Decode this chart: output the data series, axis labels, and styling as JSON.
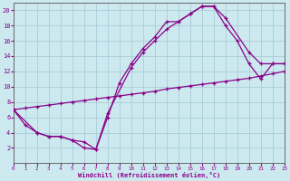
{
  "xlabel": "Windchill (Refroidissement éolien,°C)",
  "bg_color": "#cde9f0",
  "line_color": "#880088",
  "grid_color": "#aaccd8",
  "xlim": [
    0,
    23
  ],
  "ylim": [
    0,
    21
  ],
  "xticks": [
    0,
    1,
    2,
    3,
    4,
    5,
    6,
    7,
    8,
    9,
    10,
    11,
    12,
    13,
    14,
    15,
    16,
    17,
    18,
    19,
    20,
    21,
    22,
    23
  ],
  "yticks": [
    2,
    4,
    6,
    8,
    10,
    12,
    14,
    16,
    18,
    20
  ],
  "curve1_x": [
    0,
    1,
    2,
    3,
    4,
    5,
    6,
    7,
    8,
    9,
    10,
    11,
    12,
    13,
    14,
    15,
    16,
    17,
    18,
    20,
    21,
    22,
    23
  ],
  "curve1_y": [
    7,
    5,
    4,
    3.5,
    3.5,
    3,
    2,
    1.8,
    6,
    10.5,
    13,
    15,
    16.5,
    18.5,
    18.5,
    19.5,
    20.5,
    20.5,
    19,
    14.5,
    13,
    13,
    13
  ],
  "curve2_x": [
    0,
    2,
    3,
    4,
    5,
    6,
    7,
    8,
    10,
    11,
    12,
    13,
    14,
    15,
    16,
    17,
    18,
    19,
    20,
    21,
    22,
    23
  ],
  "curve2_y": [
    7,
    4,
    3.5,
    3.5,
    3,
    2.8,
    1.8,
    6.5,
    12.5,
    14.5,
    16,
    17.5,
    18.5,
    19.5,
    20.5,
    20.5,
    18,
    16,
    13,
    11,
    13,
    13
  ],
  "curve3_x": [
    0,
    1,
    2,
    3,
    4,
    5,
    6,
    7,
    8,
    9,
    10,
    11,
    12,
    13,
    14,
    15,
    16,
    17,
    18,
    19,
    20,
    21,
    22,
    23
  ],
  "curve3_y": [
    7,
    7.2,
    7.4,
    7.6,
    7.8,
    8,
    8.2,
    8.4,
    8.6,
    8.8,
    9,
    9.2,
    9.4,
    9.7,
    9.9,
    10.1,
    10.3,
    10.5,
    10.7,
    10.9,
    11.1,
    11.4,
    11.7,
    12
  ]
}
